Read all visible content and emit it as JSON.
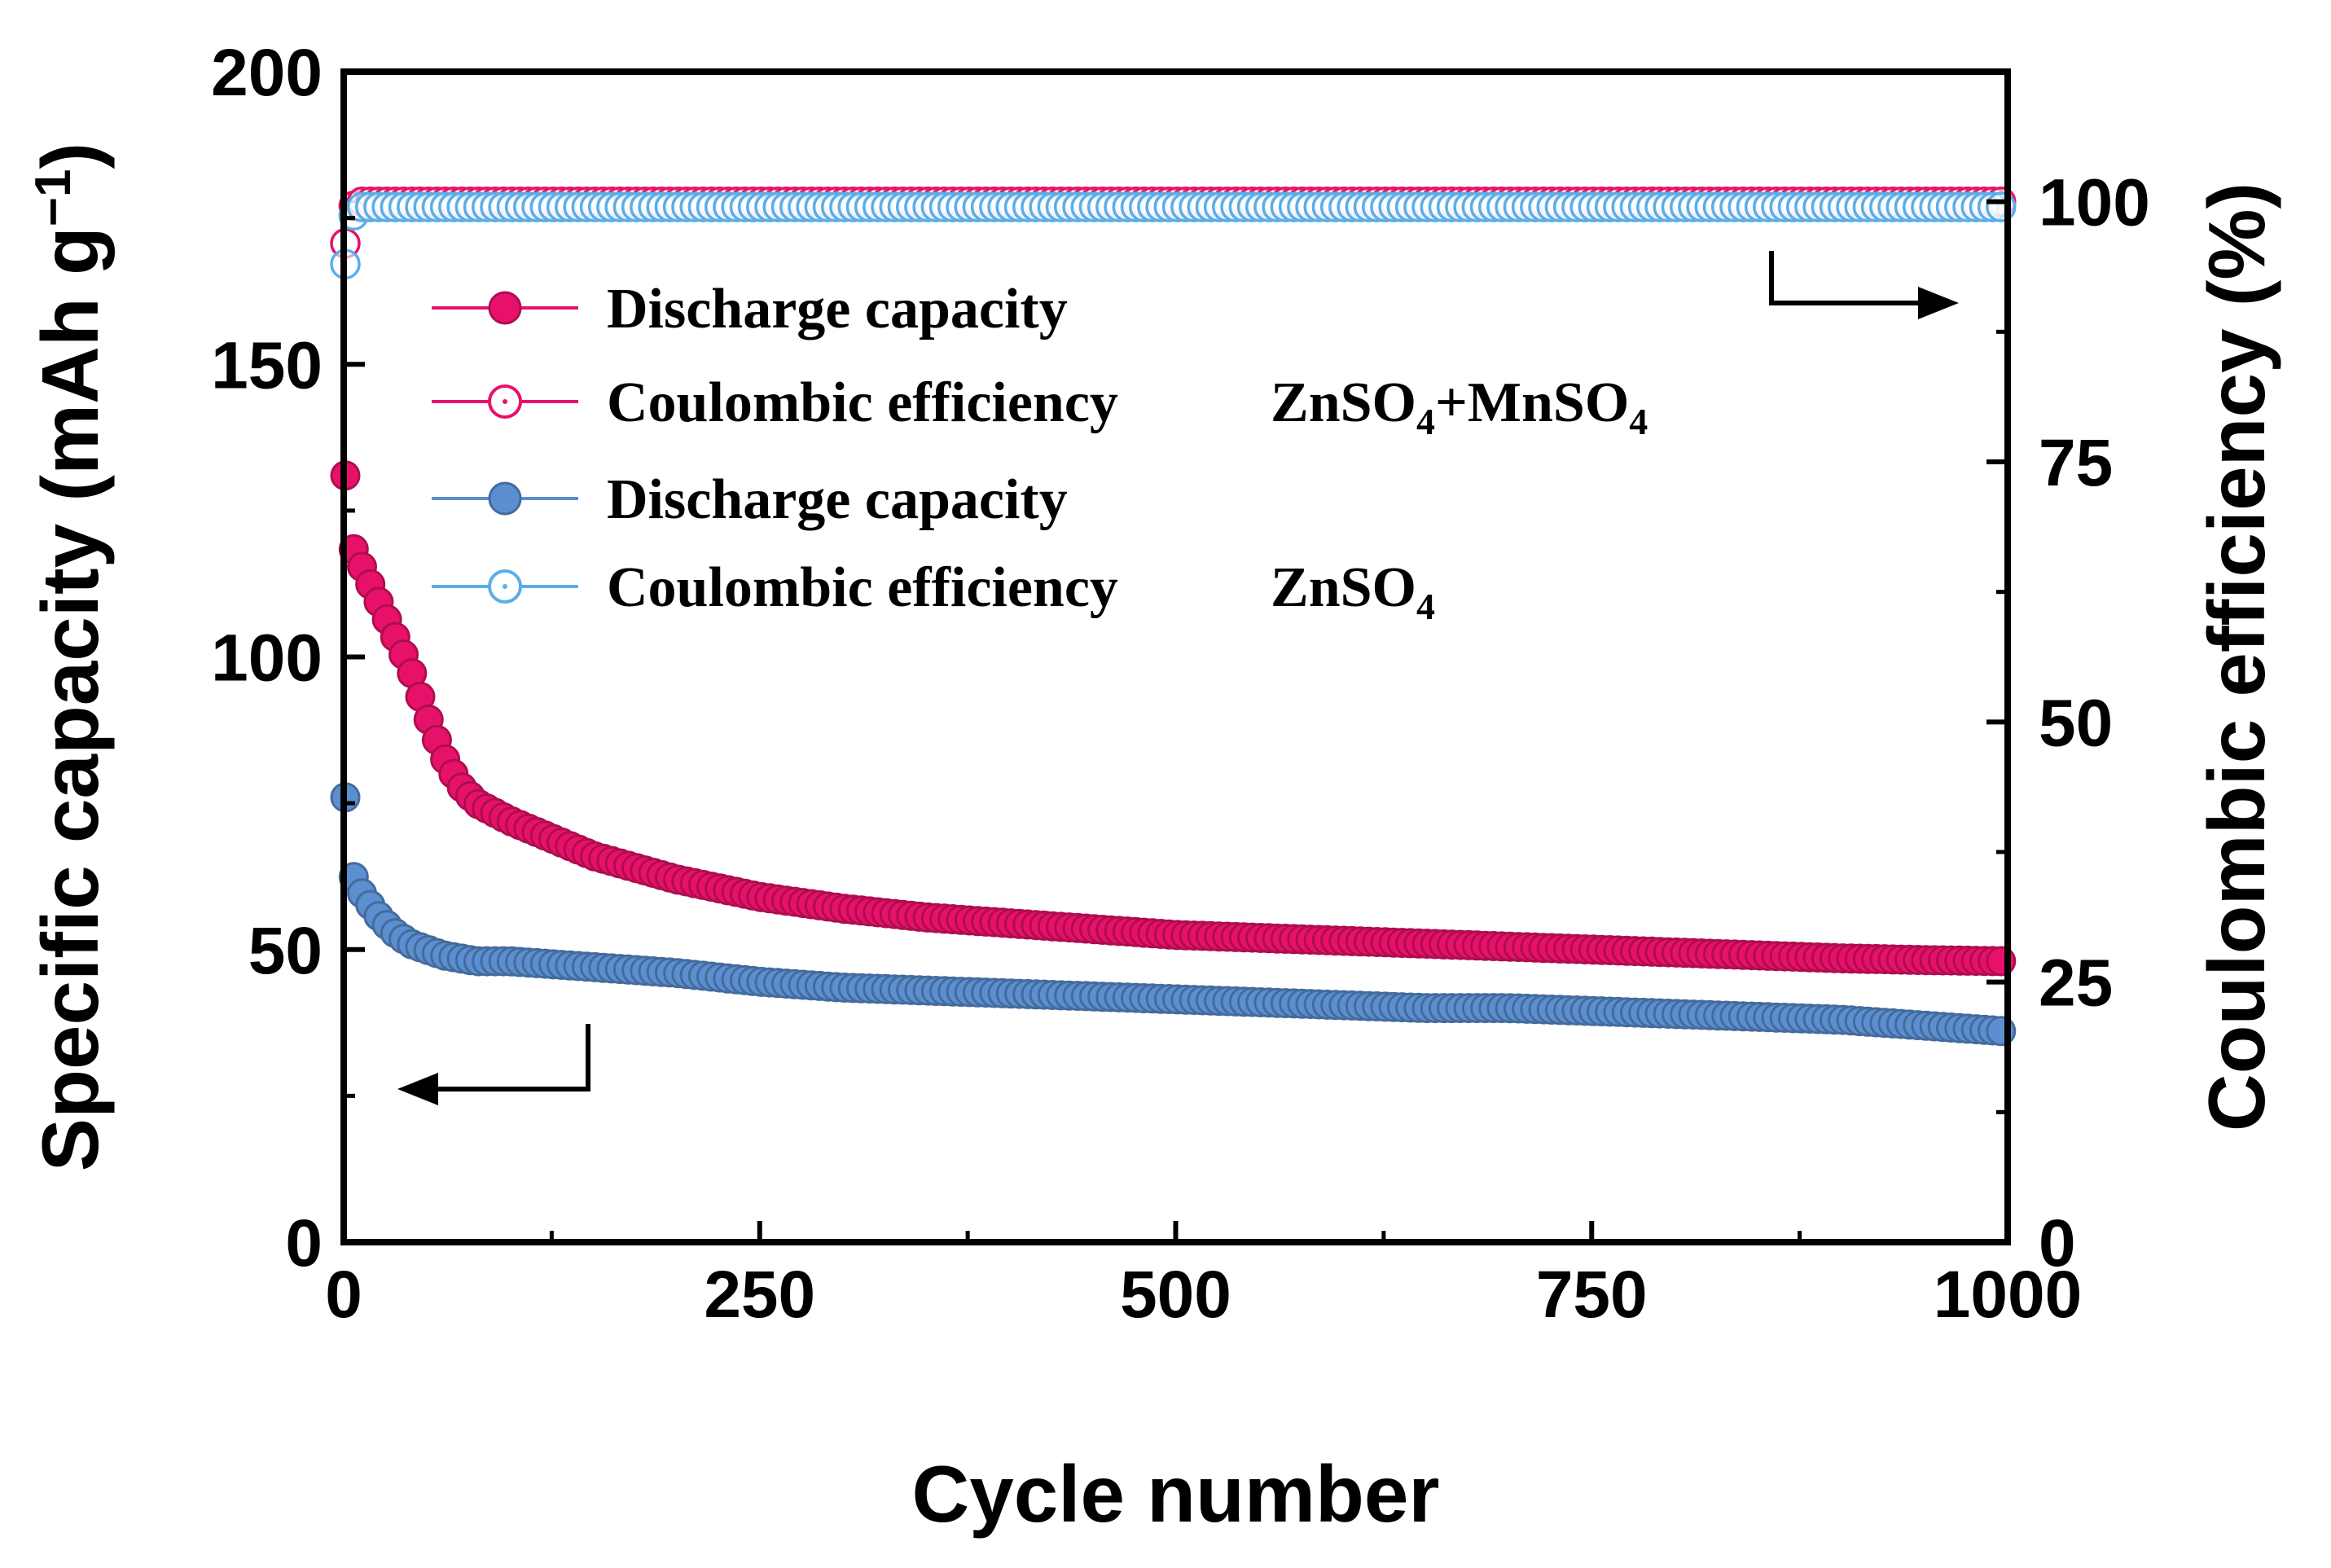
{
  "chart_data": {
    "type": "scatter",
    "xlabel": "Cycle number",
    "ylabel_left": "Specific capacity (mAh g",
    "ylabel_left_sup": "−1",
    "ylabel_left_close": ")",
    "ylabel_right": "Coulombic efficiency (%)",
    "xlim": [
      0,
      1000
    ],
    "ylim_left": [
      0,
      200
    ],
    "ylim_right": [
      0,
      112.5
    ],
    "x_ticks": [
      "0",
      "250",
      "500",
      "750",
      "1000"
    ],
    "y_left_ticks": [
      "0",
      "50",
      "100",
      "150",
      "200"
    ],
    "y_right_ticks": [
      "0",
      "25",
      "50",
      "75",
      "100"
    ],
    "legend": {
      "placement": "upper-left",
      "group1_label": "ZnSO",
      "group1_label_sub": "4",
      "group1_label_mid": "+MnSO",
      "group1_label_sub2": "4",
      "group2_label": "ZnSO",
      "group2_label_sub": "4",
      "entries": [
        "Discharge capacity",
        "Coulombic efficiency",
        "Discharge capacity",
        "Coulombic efficiency"
      ]
    },
    "series": [
      {
        "label": "Discharge capacity",
        "group": "ZnSO4+MnSO4",
        "axis": "left",
        "marker": "filled",
        "color": "#e8116a",
        "x": [
          1,
          3,
          5,
          10,
          15,
          20,
          30,
          40,
          50,
          60,
          70,
          80,
          100,
          125,
          150,
          200,
          250,
          300,
          350,
          400,
          450,
          500,
          550,
          600,
          650,
          700,
          750,
          800,
          850,
          900,
          950,
          1000
        ],
        "y": [
          131,
          121,
          119,
          116,
          113,
          110,
          104,
          98,
          90,
          83,
          78,
          75,
          72,
          69,
          66,
          62,
          59,
          57,
          55.5,
          54.5,
          53.5,
          52.5,
          52,
          51.5,
          51,
          50.5,
          50,
          49.5,
          49,
          48.5,
          48.2,
          48
        ]
      },
      {
        "label": "Coulombic efficiency",
        "group": "ZnSO4+MnSO4",
        "axis": "right",
        "marker": "open",
        "color": "#e8116a",
        "x": [
          1,
          5,
          10,
          20,
          30,
          50,
          100,
          150,
          200,
          300,
          400,
          500,
          600,
          700,
          800,
          900,
          1000
        ],
        "y": [
          96,
          99.5,
          100,
          100,
          100,
          100,
          100,
          100,
          100,
          100,
          100,
          100,
          100,
          100,
          100,
          100,
          100
        ]
      },
      {
        "label": "Discharge capacity",
        "group": "ZnSO4",
        "axis": "left",
        "marker": "filled",
        "color": "#5b8fd0",
        "x": [
          1,
          3,
          5,
          10,
          15,
          20,
          30,
          40,
          50,
          60,
          70,
          80,
          100,
          150,
          200,
          250,
          300,
          350,
          400,
          450,
          500,
          550,
          600,
          650,
          700,
          750,
          800,
          850,
          900,
          950,
          1000
        ],
        "y": [
          76,
          65,
          63,
          60,
          58,
          56,
          53,
          51,
          50,
          49,
          48.5,
          48,
          48,
          47,
          46,
          44.5,
          43.5,
          43,
          42.5,
          42,
          41.5,
          41,
          40.5,
          40,
          40,
          39.5,
          39,
          38.5,
          38,
          37,
          36
        ]
      },
      {
        "label": "Coulombic efficiency",
        "group": "ZnSO4",
        "axis": "right",
        "marker": "open",
        "color": "#5aaee8",
        "x": [
          1,
          5,
          10,
          20,
          30,
          50,
          100,
          150,
          200,
          300,
          400,
          500,
          600,
          700,
          800,
          900,
          1000
        ],
        "y": [
          94,
          98.5,
          99.5,
          99.5,
          99.5,
          99.5,
          99.5,
          99.5,
          99.5,
          99.5,
          99.5,
          99.5,
          99.5,
          99.5,
          99.5,
          99.5,
          99.5
        ]
      }
    ]
  }
}
